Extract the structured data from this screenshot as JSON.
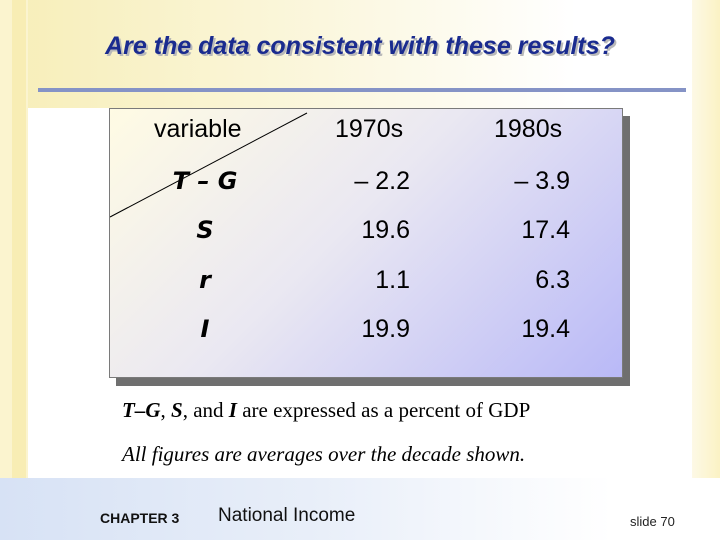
{
  "slide": {
    "title": "Are the data consistent with these results?"
  },
  "table": {
    "header": {
      "variable": "variable",
      "col1": "1970s",
      "col2": "1980s"
    },
    "rows": [
      {
        "variable": "T – G",
        "v1970s": "– 2.2",
        "v1980s": "– 3.9"
      },
      {
        "variable": "S",
        "v1970s": "19.6",
        "v1980s": "17.4"
      },
      {
        "variable": "r",
        "v1970s": "1.1",
        "v1980s": "6.3"
      },
      {
        "variable": "I",
        "v1970s": "19.9",
        "v1980s": "19.4"
      }
    ]
  },
  "notes": {
    "line1": {
      "tg": "T–G",
      "sep1": ", ",
      "s": "S",
      "sep2": ", and ",
      "i": "I",
      "rest": " are expressed as a percent of GDP"
    },
    "line2": "All figures are averages over the decade shown."
  },
  "footer": {
    "chapter": "CHAPTER 3",
    "chapter_title": "National Income",
    "slide_number": "slide 70"
  },
  "colors": {
    "title": "#1a2b8f",
    "title_rule": "#8593c6",
    "table_gradient_end": "#b9b9f7"
  }
}
